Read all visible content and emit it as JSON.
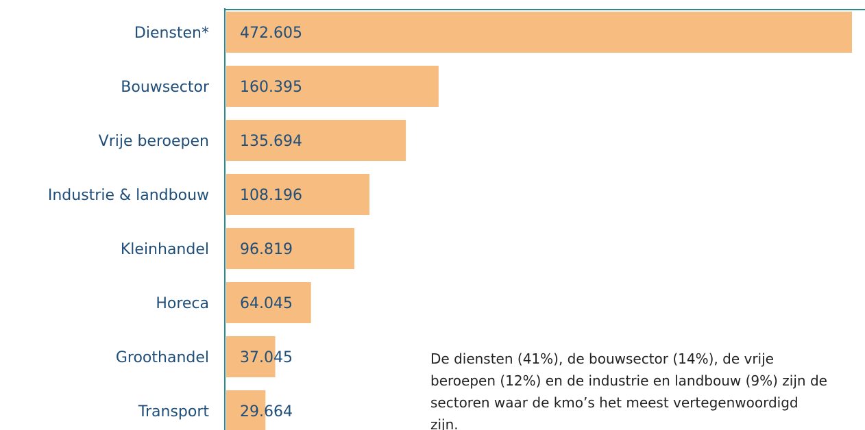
{
  "chart_data": {
    "type": "barh",
    "categories": [
      "Diensten*",
      "Bouwsector",
      "Vrije beroepen",
      "Industrie & landbouw",
      "Kleinhandel",
      "Horeca",
      "Groothandel",
      "Transport"
    ],
    "values": [
      472605,
      160395,
      135694,
      108196,
      96819,
      64045,
      37045,
      29664
    ],
    "value_labels": [
      "472.605",
      "160.395",
      "135.694",
      "108.196",
      "96.819",
      "64.045",
      "37.045",
      "29.664"
    ],
    "color": "#f6bc80",
    "annotation": [
      "De diensten (41%), de bouwsector (14%), de vrije",
      "beroepen (12%) en de industrie en landbouw (9%) zijn de",
      "sectoren waar de kmo’s het meest vertegenwoordigd",
      "zijn."
    ]
  }
}
